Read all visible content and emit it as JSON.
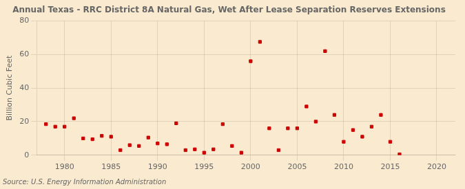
{
  "chart_data": {
    "type": "scatter",
    "title": "Annual Texas - RRC District 8A Natural Gas, Wet After Lease Separation Reserves Extensions",
    "ylabel": "Billion Cubic Feet",
    "source": "Source: U.S. Energy Information Administration",
    "background_color": "#faebd0",
    "color": "#cc0000",
    "marker": "square",
    "grid": true,
    "xlim": [
      1977,
      2022
    ],
    "ylim": [
      0,
      80
    ],
    "xticks": [
      1980,
      1985,
      1990,
      1995,
      2000,
      2005,
      2010,
      2015,
      2020
    ],
    "yticks": [
      0,
      20,
      40,
      60,
      80
    ],
    "x": [
      1978,
      1979,
      1980,
      1981,
      1982,
      1983,
      1984,
      1985,
      1986,
      1987,
      1988,
      1989,
      1990,
      1991,
      1992,
      1993,
      1994,
      1995,
      1996,
      1997,
      1998,
      1999,
      2000,
      2001,
      2002,
      2003,
      2004,
      2005,
      2006,
      2007,
      2008,
      2009,
      2010,
      2011,
      2012,
      2013,
      2014,
      2015,
      2016
    ],
    "values": [
      18.5,
      17.0,
      17.0,
      22.0,
      10.0,
      9.5,
      11.5,
      11.0,
      3.0,
      6.0,
      5.5,
      10.5,
      7.0,
      6.5,
      19.0,
      3.0,
      3.5,
      1.5,
      3.5,
      18.5,
      5.5,
      1.5,
      56.0,
      67.5,
      16.0,
      3.0,
      16.0,
      16.0,
      29.0,
      20.0,
      62.0,
      24.0,
      8.0,
      15.0,
      11.0,
      17.0,
      24.0,
      8.0,
      0.5
    ]
  }
}
